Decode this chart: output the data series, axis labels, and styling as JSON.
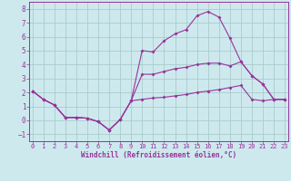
{
  "xlabel": "Windchill (Refroidissement éolien,°C)",
  "background_color": "#cde9ee",
  "grid_color": "#aacccc",
  "line_color": "#993399",
  "x_max": 23,
  "x_min": 0,
  "y_min": -1.5,
  "y_max": 8.5,
  "line1_x": [
    0,
    1,
    2,
    3,
    4,
    5,
    6,
    7,
    8,
    9,
    10,
    11,
    12,
    13,
    14,
    15,
    16,
    17,
    18,
    19,
    20,
    21,
    22,
    23
  ],
  "line1_y": [
    2.1,
    1.5,
    1.1,
    0.2,
    0.2,
    0.15,
    -0.1,
    -0.7,
    0.05,
    1.4,
    5.0,
    4.9,
    5.7,
    6.2,
    6.5,
    7.5,
    7.8,
    7.4,
    5.9,
    4.2,
    3.2,
    2.6,
    1.5,
    1.5
  ],
  "line2_x": [
    0,
    1,
    2,
    3,
    4,
    5,
    6,
    7,
    8,
    9,
    10,
    11,
    12,
    13,
    14,
    15,
    16,
    17,
    18,
    19,
    20,
    21,
    22,
    23
  ],
  "line2_y": [
    2.1,
    1.5,
    1.1,
    0.2,
    0.2,
    0.15,
    -0.1,
    -0.7,
    0.05,
    1.4,
    3.3,
    3.3,
    3.5,
    3.7,
    3.8,
    4.0,
    4.1,
    4.1,
    3.9,
    4.2,
    3.2,
    2.6,
    1.5,
    1.5
  ],
  "line3_x": [
    0,
    1,
    2,
    3,
    4,
    5,
    6,
    7,
    8,
    9,
    10,
    11,
    12,
    13,
    14,
    15,
    16,
    17,
    18,
    19,
    20,
    21,
    22,
    23
  ],
  "line3_y": [
    2.1,
    1.5,
    1.1,
    0.2,
    0.2,
    0.15,
    -0.1,
    -0.7,
    0.05,
    1.4,
    1.5,
    1.6,
    1.65,
    1.75,
    1.85,
    2.0,
    2.1,
    2.2,
    2.35,
    2.5,
    1.5,
    1.4,
    1.5,
    1.5
  ],
  "yticks": [
    -1,
    0,
    1,
    2,
    3,
    4,
    5,
    6,
    7,
    8
  ],
  "xticks": [
    0,
    1,
    2,
    3,
    4,
    5,
    6,
    7,
    8,
    9,
    10,
    11,
    12,
    13,
    14,
    15,
    16,
    17,
    18,
    19,
    20,
    21,
    22,
    23
  ]
}
